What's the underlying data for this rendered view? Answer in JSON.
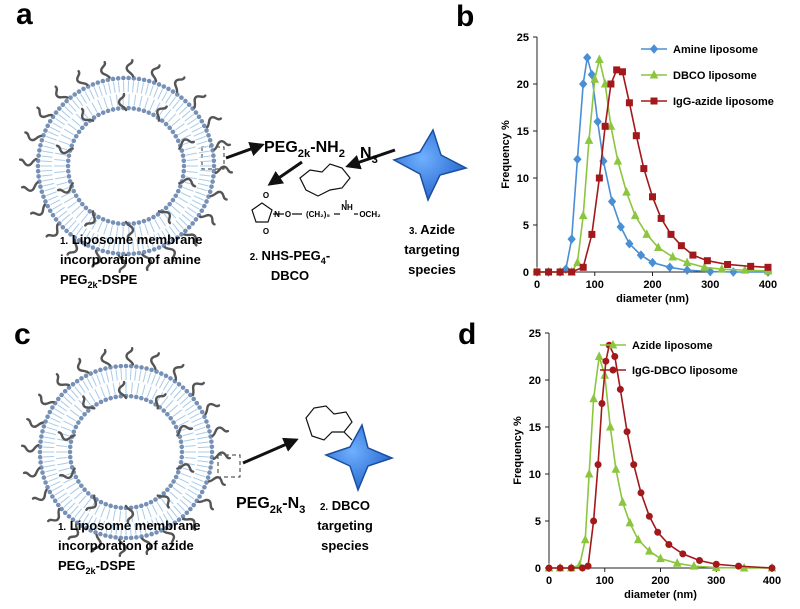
{
  "panel_labels": [
    "a",
    "b",
    "c",
    "d"
  ],
  "diagram_a": {
    "peg": [
      {
        "text": "PEG"
      },
      {
        "text": "2k",
        "sub": true
      },
      {
        "text": "-NH"
      },
      {
        "text": "2",
        "sub": true
      }
    ],
    "azide_group": [
      {
        "text": "N"
      },
      {
        "text": "3",
        "sub": true
      }
    ],
    "step1": [
      [
        {
          "text": "1.",
          "small": true
        },
        {
          "text": " Liposome membrane"
        }
      ],
      [
        {
          "text": "incorporation of amine"
        }
      ],
      [
        {
          "text": "PEG"
        },
        {
          "text": "2k",
          "sub": true
        },
        {
          "text": "-DSPE"
        }
      ]
    ],
    "step2": [
      [
        {
          "text": "2.",
          "small": true
        },
        {
          "text": " NHS-PEG"
        },
        {
          "text": "4",
          "sub": true
        },
        {
          "text": "-"
        }
      ],
      [
        {
          "text": "DBCO"
        }
      ]
    ],
    "step3": [
      [
        {
          "text": "3.",
          "small": true
        },
        {
          "text": " Azide"
        }
      ],
      [
        {
          "text": "targeting"
        }
      ],
      [
        {
          "text": "species"
        }
      ]
    ],
    "structure_labels": [
      "O",
      "N",
      "O",
      "O",
      "(CH₂)₅",
      "NH",
      "OCH₂"
    ]
  },
  "diagram_c": {
    "peg": [
      {
        "text": "PEG"
      },
      {
        "text": "2k",
        "sub": true
      },
      {
        "text": "-N"
      },
      {
        "text": "3",
        "sub": true
      }
    ],
    "step1": [
      [
        {
          "text": "1.",
          "small": true
        },
        {
          "text": " Liposome membrane"
        }
      ],
      [
        {
          "text": "incorporation of azide"
        }
      ],
      [
        {
          "text": "PEG"
        },
        {
          "text": "2k",
          "sub": true
        },
        {
          "text": "-DSPE"
        }
      ]
    ],
    "step2": [
      [
        {
          "text": "2.",
          "small": true
        },
        {
          "text": " DBCO"
        }
      ],
      [
        {
          "text": "targeting"
        }
      ],
      [
        {
          "text": "species"
        }
      ]
    ]
  },
  "chart_data": [
    {
      "type": "line",
      "xlabel": "diameter (nm)",
      "ylabel": "Frequency %",
      "xlim": [
        0,
        400
      ],
      "ylim": [
        0,
        25
      ],
      "xticks": [
        0,
        100,
        200,
        300,
        400
      ],
      "yticks": [
        0,
        5,
        10,
        15,
        20,
        25
      ],
      "legend": "upper right",
      "series": [
        {
          "name": "Amine liposome",
          "color": "#4a8fd4",
          "marker": "diamond",
          "x": [
            0,
            20,
            40,
            50,
            60,
            70,
            80,
            87,
            95,
            105,
            115,
            130,
            145,
            160,
            180,
            200,
            230,
            260,
            300,
            340,
            400
          ],
          "values": [
            0,
            0,
            0,
            0.3,
            3.5,
            12,
            20,
            22.8,
            21,
            16,
            11.8,
            7.5,
            4.8,
            3,
            1.8,
            1,
            0.5,
            0.2,
            0.05,
            0,
            0
          ]
        },
        {
          "name": "DBCO liposome",
          "color": "#8cc63f",
          "marker": "triangle",
          "x": [
            0,
            40,
            60,
            70,
            80,
            90,
            100,
            108,
            118,
            128,
            140,
            155,
            170,
            190,
            210,
            235,
            260,
            290,
            320,
            360,
            400
          ],
          "values": [
            0,
            0,
            0,
            1,
            6,
            14,
            20.5,
            22.6,
            20,
            15.5,
            11.8,
            8.5,
            6,
            4,
            2.6,
            1.6,
            1,
            0.5,
            0.3,
            0.2,
            0.1
          ]
        },
        {
          "name": "IgG-azide liposome",
          "color": "#a3181b",
          "marker": "square",
          "x": [
            0,
            20,
            40,
            60,
            80,
            95,
            108,
            118,
            128,
            138,
            148,
            160,
            172,
            185,
            200,
            215,
            232,
            250,
            270,
            295,
            330,
            370,
            400
          ],
          "values": [
            0,
            0,
            0,
            0,
            0.5,
            4,
            10,
            15.5,
            20,
            21.5,
            21.3,
            18,
            14.5,
            11,
            8,
            5.7,
            4,
            2.8,
            1.8,
            1.2,
            0.8,
            0.6,
            0.5
          ]
        }
      ]
    },
    {
      "type": "line",
      "xlabel": "diameter (nm)",
      "ylabel": "Frequency %",
      "xlim": [
        0,
        400
      ],
      "ylim": [
        0,
        25
      ],
      "xticks": [
        0,
        100,
        200,
        300,
        400
      ],
      "yticks": [
        0,
        5,
        10,
        15,
        20,
        25
      ],
      "legend": "upper right",
      "series": [
        {
          "name": "Azide liposome",
          "color": "#8cc63f",
          "marker": "triangle",
          "x": [
            0,
            20,
            40,
            55,
            65,
            72,
            80,
            90,
            100,
            110,
            120,
            132,
            145,
            160,
            180,
            200,
            230,
            260,
            300,
            350,
            400
          ],
          "values": [
            0,
            0,
            0,
            0.3,
            3,
            10,
            18,
            22.5,
            20.5,
            15,
            10.5,
            7,
            4.8,
            3,
            1.8,
            1,
            0.5,
            0.2,
            0.05,
            0,
            0
          ]
        },
        {
          "name": "IgG-DBCO liposome",
          "color": "#a3181b",
          "marker": "circle",
          "x": [
            0,
            20,
            40,
            60,
            70,
            80,
            88,
            95,
            102,
            108,
            118,
            128,
            140,
            152,
            165,
            180,
            195,
            215,
            240,
            270,
            300,
            340,
            400
          ],
          "values": [
            0,
            0,
            0,
            0,
            0.2,
            5,
            11,
            17.5,
            22,
            23.7,
            22.5,
            19,
            14.5,
            11,
            8,
            5.5,
            3.8,
            2.5,
            1.5,
            0.8,
            0.4,
            0.2,
            0
          ]
        }
      ]
    }
  ]
}
